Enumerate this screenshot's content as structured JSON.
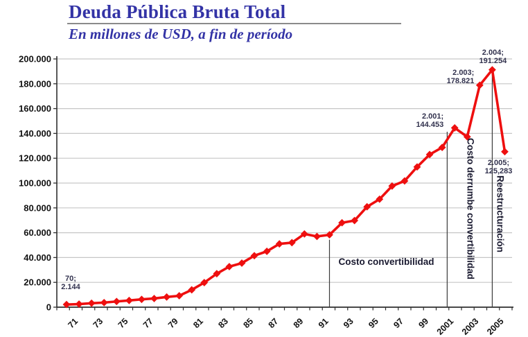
{
  "header": {
    "title": "Deuda Pública Bruta Total",
    "subtitle": "En millones de USD, a fin de período"
  },
  "chart_data": {
    "type": "line",
    "series_name": "Deuda pública bruta total",
    "title": "Deuda Pública Bruta Total",
    "subtitle": "En millones de USD, a fin de período",
    "units": "millones de USD",
    "x": [
      1970,
      1971,
      1972,
      1973,
      1974,
      1975,
      1976,
      1977,
      1978,
      1979,
      1980,
      1981,
      1982,
      1983,
      1984,
      1985,
      1986,
      1987,
      1988,
      1989,
      1990,
      1991,
      1992,
      1993,
      1994,
      1995,
      1996,
      1997,
      1998,
      1999,
      2000,
      2001,
      2002,
      2003,
      2004,
      2005
    ],
    "values": [
      2144,
      2500,
      3200,
      3700,
      4600,
      5400,
      6300,
      7000,
      8200,
      9200,
      14000,
      19800,
      27000,
      32700,
      35500,
      41500,
      45000,
      51000,
      52000,
      59000,
      57000,
      58300,
      68000,
      69800,
      80900,
      87000,
      97600,
      101700,
      113000,
      123000,
      128700,
      144453,
      137300,
      178821,
      191254,
      125283
    ],
    "x_tick_labels": [
      "71",
      "73",
      "75",
      "77",
      "79",
      "81",
      "83",
      "85",
      "87",
      "89",
      "91",
      "93",
      "95",
      "97",
      "99",
      "2001",
      "2003",
      "2005"
    ],
    "y_ticks": [
      0,
      20000,
      40000,
      60000,
      80000,
      100000,
      120000,
      140000,
      160000,
      180000,
      200000
    ],
    "y_tick_labels": [
      "0",
      "20.000",
      "40.000",
      "60.000",
      "80.000",
      "100.000",
      "120.000",
      "140.000",
      "160.000",
      "180.000",
      "200.000"
    ],
    "ylim": [
      0,
      200000
    ],
    "grid": "horizontal",
    "legend": "none",
    "line_color": "#ee0f0f",
    "marker": "diamond",
    "annotations": {
      "point_labels": [
        {
          "year": 1970,
          "lines": [
            "70;",
            "2.144"
          ]
        },
        {
          "year": 2001,
          "lines": [
            "2.001;",
            "144.453"
          ]
        },
        {
          "year": 2003,
          "lines": [
            "2.003;",
            "178.821"
          ]
        },
        {
          "year": 2004,
          "lines": [
            "2.004;",
            "191.254"
          ]
        },
        {
          "year": 2005,
          "lines": [
            "2.005;",
            "125,283"
          ]
        }
      ],
      "event_labels": [
        {
          "label": "Costo convertibilidad",
          "year": 1991,
          "text_orientation": "horizontal"
        },
        {
          "label": "Costo derrumbe convertibilidad",
          "year": 2000.4,
          "text_orientation": "vertical"
        },
        {
          "label": "Reestructuración",
          "year": 2004,
          "text_orientation": "vertical"
        }
      ]
    }
  },
  "colors": {
    "title_blue": "#3333a6",
    "line_red": "#ee0f0f",
    "grid_gray": "#c6c6c6",
    "axis_dark": "#2e2e2e",
    "annotation_dark": "#32324e"
  }
}
